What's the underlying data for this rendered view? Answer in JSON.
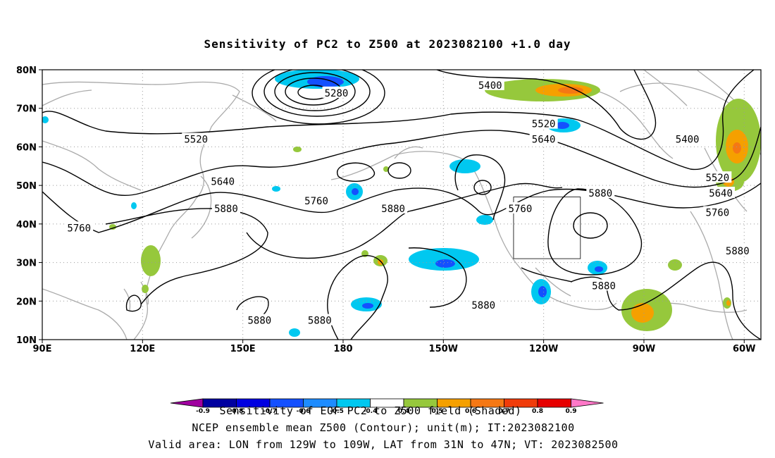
{
  "title": "Sensitivity of PC2 to Z500 at 2023082100 +1.0 day",
  "axes": {
    "lon_min": 90,
    "lon_max": 305,
    "lat_min": 10,
    "lat_max": 80,
    "x_ticks": [
      {
        "lon": 90,
        "label": "90E"
      },
      {
        "lon": 120,
        "label": "120E"
      },
      {
        "lon": 150,
        "label": "150E"
      },
      {
        "lon": 180,
        "label": "180"
      },
      {
        "lon": 210,
        "label": "150W"
      },
      {
        "lon": 240,
        "label": "120W"
      },
      {
        "lon": 270,
        "label": "90W"
      },
      {
        "lon": 300,
        "label": "60W"
      }
    ],
    "y_ticks": [
      {
        "lat": 10,
        "label": "10N"
      },
      {
        "lat": 20,
        "label": "20N"
      },
      {
        "lat": 30,
        "label": "30N"
      },
      {
        "lat": 40,
        "label": "40N"
      },
      {
        "lat": 50,
        "label": "50N"
      },
      {
        "lat": 60,
        "label": "60N"
      },
      {
        "lat": 70,
        "label": "70N"
      },
      {
        "lat": 80,
        "label": "80N"
      }
    ]
  },
  "valid_box": {
    "lon_w": 231,
    "lon_e": 251,
    "lat_s": 31,
    "lat_n": 47
  },
  "contour_labels": [
    {
      "text": "5280",
      "lon": 178,
      "lat": 74
    },
    {
      "text": "5400",
      "lon": 224,
      "lat": 76
    },
    {
      "text": "5400",
      "lon": 283,
      "lat": 62
    },
    {
      "text": "5520",
      "lon": 136,
      "lat": 62
    },
    {
      "text": "5520",
      "lon": 240,
      "lat": 66
    },
    {
      "text": "5520",
      "lon": 292,
      "lat": 52
    },
    {
      "text": "5640",
      "lon": 144,
      "lat": 51
    },
    {
      "text": "5640",
      "lon": 240,
      "lat": 62
    },
    {
      "text": "5640",
      "lon": 293,
      "lat": 48
    },
    {
      "text": "5760",
      "lon": 172,
      "lat": 46
    },
    {
      "text": "5760",
      "lon": 233,
      "lat": 44
    },
    {
      "text": "5760",
      "lon": 292,
      "lat": 43
    },
    {
      "text": "5760",
      "lon": 101,
      "lat": 39
    },
    {
      "text": "5880",
      "lon": 145,
      "lat": 44
    },
    {
      "text": "5880",
      "lon": 195,
      "lat": 44
    },
    {
      "text": "5880",
      "lon": 257,
      "lat": 48
    },
    {
      "text": "5880",
      "lon": 298,
      "lat": 33
    },
    {
      "text": "5880",
      "lon": 258,
      "lat": 24
    },
    {
      "text": "5880",
      "lon": 222,
      "lat": 19
    },
    {
      "text": "5880",
      "lon": 155,
      "lat": 15
    },
    {
      "text": "5880",
      "lon": 173,
      "lat": 15
    }
  ],
  "colorbar": {
    "colors": [
      "#a000a0",
      "#0000a0",
      "#0000e0",
      "#1450ff",
      "#1e8cff",
      "#00c8f0",
      "#ffffff",
      "#96c83c",
      "#f5a000",
      "#f57814",
      "#f03c0a",
      "#e60000",
      "#ff78c8"
    ],
    "labels": [
      "-0.9",
      "-0.8",
      "-0.7",
      "-0.6",
      "-0.5",
      "-0.4",
      "0.4",
      "0.5",
      "0.6",
      "0.7",
      "0.8",
      "0.9"
    ]
  },
  "caption": {
    "line1": "Sensitivity of EOF PC2 to Z500 field (Shaded)",
    "line2": "NCEP ensemble mean Z500 (Contour); unit(m); IT:2023082100",
    "line3": "Valid area: LON from 129W to 109W, LAT from 31N to 47N; VT: 2023082500"
  }
}
